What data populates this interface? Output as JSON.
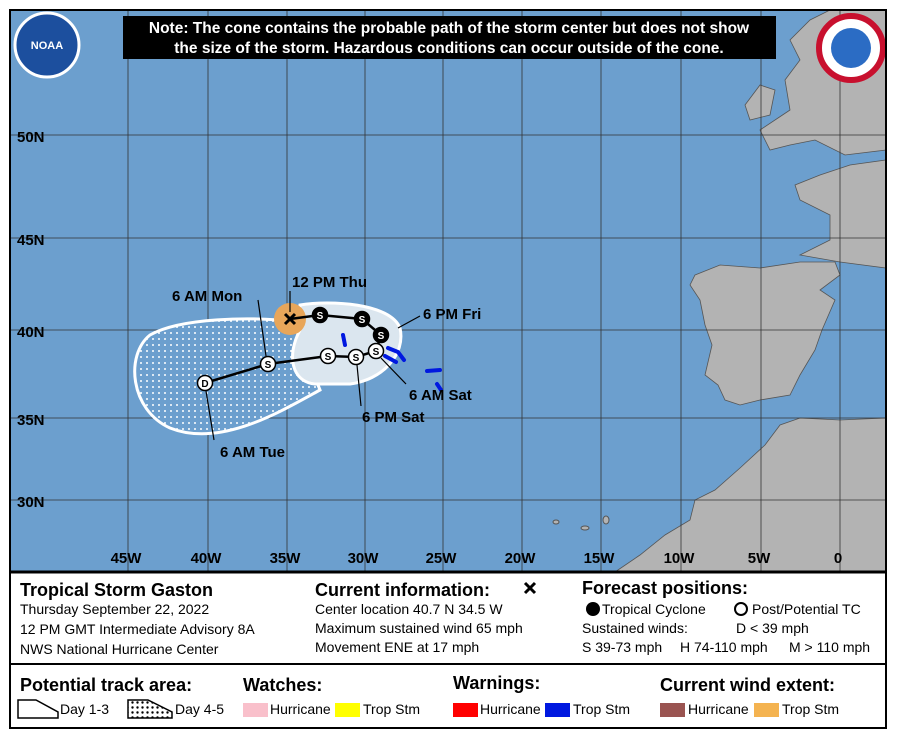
{
  "logos": {
    "left": "NOAA"
  },
  "note": [
    "Note: The cone contains the probable path of the storm center but does not show",
    "the size of the storm. Hazardous conditions can occur outside of the cone."
  ],
  "map": {
    "lat_labels": [
      "50N",
      "45N",
      "40N",
      "35N",
      "30N"
    ],
    "lon_labels": [
      "45W",
      "40W",
      "35W",
      "30W",
      "25W",
      "20W",
      "15W",
      "10W",
      "5W",
      "0"
    ],
    "track_labels": [
      "12 PM Thu",
      "6 PM Fri",
      "6 AM Sat",
      "6 PM Sat",
      "6 AM Mon",
      "6 AM Tue"
    ],
    "track_points": [
      "S",
      "S",
      "S",
      "S",
      "S",
      "S",
      "S",
      "D"
    ]
  },
  "storm": {
    "name": "Tropical Storm Gaston",
    "date": "Thursday September 22, 2022",
    "advisory": "12 PM GMT Intermediate Advisory 8A",
    "center": "NWS National Hurricane Center"
  },
  "current": {
    "title": "Current information:",
    "lines": [
      "Center location 40.7 N 34.5 W",
      "Maximum sustained wind 65 mph",
      "Movement ENE at 17 mph"
    ]
  },
  "forecast": {
    "title": "Forecast positions:",
    "tropical": "Tropical Cyclone",
    "post": "Post/Potential TC",
    "winds_title": "Sustained winds:",
    "d": "D < 39 mph",
    "s": "S 39-73 mph",
    "h": "H 74-110 mph",
    "m": "M > 110 mph"
  },
  "legend": {
    "track": {
      "title": "Potential track area:",
      "day13": "Day 1-3",
      "day45": "Day 4-5"
    },
    "watches": {
      "title": "Watches:",
      "hurricane": "Hurricane",
      "tropical": "Trop Stm"
    },
    "warnings": {
      "title": "Warnings:",
      "hurricane": "Hurricane",
      "tropical": "Trop Stm"
    },
    "wind": {
      "title": "Current wind extent:",
      "hurricane": "Hurricane",
      "tropical": "Trop Stm"
    }
  }
}
